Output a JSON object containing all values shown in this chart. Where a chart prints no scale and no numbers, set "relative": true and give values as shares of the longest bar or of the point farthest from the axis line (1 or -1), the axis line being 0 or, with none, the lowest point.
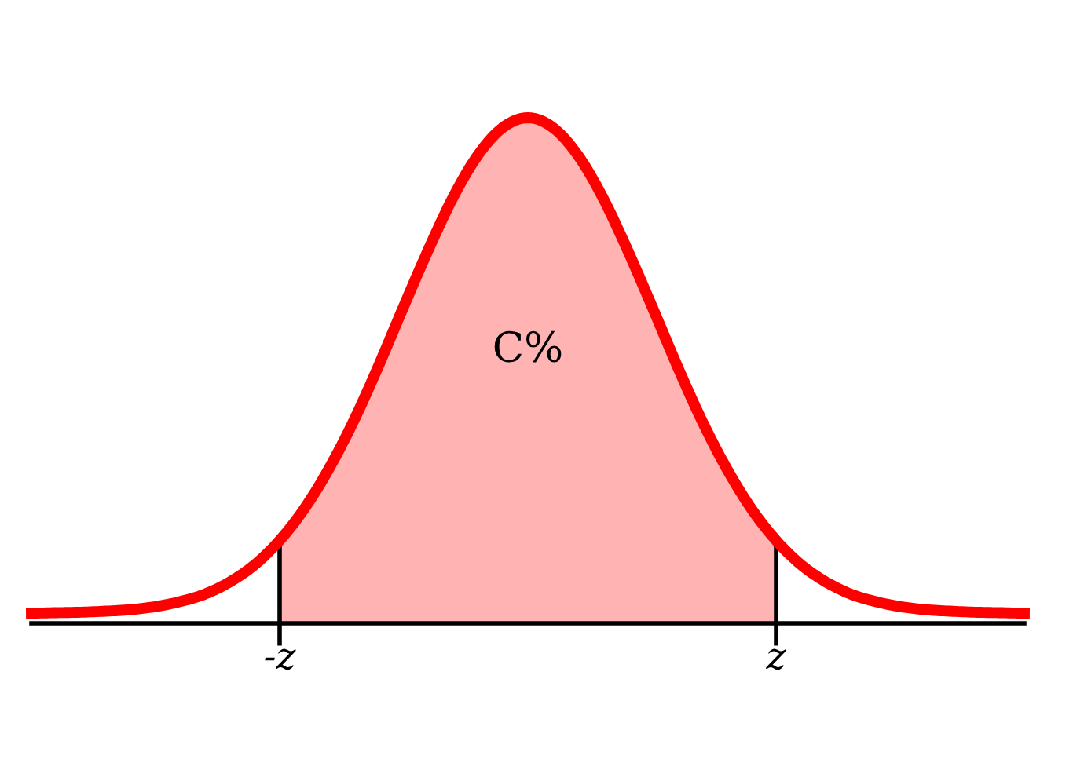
{
  "chart_data": {
    "type": "line",
    "relative": true,
    "categories": [
      null,
      null,
      null,
      null,
      null,
      null,
      null,
      null,
      null,
      null,
      "-z",
      null,
      null,
      null,
      null,
      null,
      null,
      null,
      null,
      null,
      null,
      null,
      null,
      null,
      null,
      null,
      null,
      null,
      null,
      null,
      "z",
      null,
      null,
      null,
      null,
      null,
      null,
      null,
      null,
      null,
      null
    ],
    "series": [
      {
        "type": "area",
        "color": "#ffb3b3",
        "values": [
          null,
          null,
          null,
          null,
          null,
          null,
          null,
          null,
          null,
          null,
          0.164,
          0.227,
          0.307,
          0.402,
          0.511,
          0.627,
          0.74,
          0.844,
          0.927,
          0.981,
          1.0,
          0.981,
          0.927,
          0.844,
          0.74,
          0.627,
          0.511,
          0.402,
          0.307,
          0.227,
          0.164,
          null,
          null,
          null,
          null,
          null,
          null,
          null,
          null,
          null,
          null
        ]
      },
      {
        "color": "#ff0000",
        "values": [
          0.02,
          0.021,
          0.022,
          0.024,
          0.027,
          0.033,
          0.043,
          0.058,
          0.082,
          0.116,
          0.164,
          0.227,
          0.307,
          0.402,
          0.511,
          0.627,
          0.74,
          0.844,
          0.927,
          0.981,
          1.0,
          0.981,
          0.927,
          0.844,
          0.74,
          0.627,
          0.511,
          0.402,
          0.307,
          0.227,
          0.164,
          0.116,
          0.082,
          0.058,
          0.043,
          0.033,
          0.027,
          0.024,
          0.022,
          0.021,
          0.02
        ]
      }
    ],
    "annotations": [
      "C%"
    ],
    "grid": false,
    "legend": false,
    "marker": "none",
    "line_style": "solid"
  }
}
